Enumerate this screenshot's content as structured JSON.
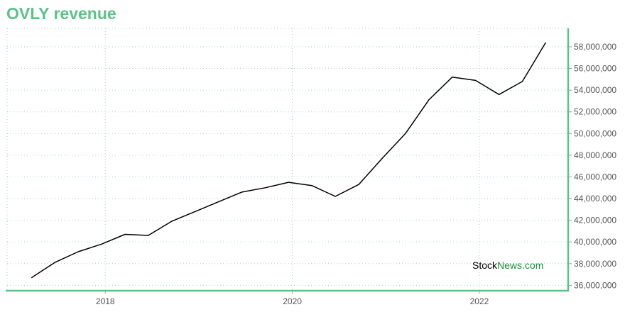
{
  "chart_data": {
    "type": "line",
    "title": "OVLY revenue",
    "xlabel": "",
    "ylabel": "",
    "x": [
      2017.21,
      2017.46,
      2017.71,
      2017.96,
      2018.21,
      2018.46,
      2018.71,
      2018.96,
      2019.21,
      2019.46,
      2019.71,
      2019.96,
      2020.21,
      2020.46,
      2020.71,
      2020.96,
      2021.21,
      2021.46,
      2021.71,
      2021.96,
      2022.21,
      2022.46,
      2022.71
    ],
    "series": [
      {
        "values": [
          36700000,
          38100000,
          39100000,
          39800000,
          40700000,
          40600000,
          41900000,
          42800000,
          43700000,
          44600000,
          45000000,
          45500000,
          45200000,
          44200000,
          45300000,
          47700000,
          50000000,
          53100000,
          55200000,
          54900000,
          53600000,
          54800000,
          58400000
        ]
      }
    ],
    "x_ticks": [
      "2018",
      "2020",
      "2022"
    ],
    "x_tick_values": [
      2018,
      2020,
      2022
    ],
    "y_ticks": [
      "36,000,000",
      "38,000,000",
      "40,000,000",
      "42,000,000",
      "44,000,000",
      "46,000,000",
      "48,000,000",
      "50,000,000",
      "52,000,000",
      "54,000,000",
      "56,000,000",
      "58,000,000"
    ],
    "y_tick_values": [
      36000000,
      38000000,
      40000000,
      42000000,
      44000000,
      46000000,
      48000000,
      50000000,
      52000000,
      54000000,
      56000000,
      58000000
    ],
    "xlim": [
      2016.95,
      2022.95
    ],
    "ylim": [
      35500000,
      59700000
    ],
    "grid": true,
    "legend": "none"
  },
  "watermark": {
    "stock": "Stock",
    "news": "News",
    "com": ".com"
  },
  "colors": {
    "title": "#5cc287",
    "axis": "#5cc287",
    "grid": "#9fd6d0",
    "line": "#000000",
    "watermark_news": "#1a8f3a"
  }
}
